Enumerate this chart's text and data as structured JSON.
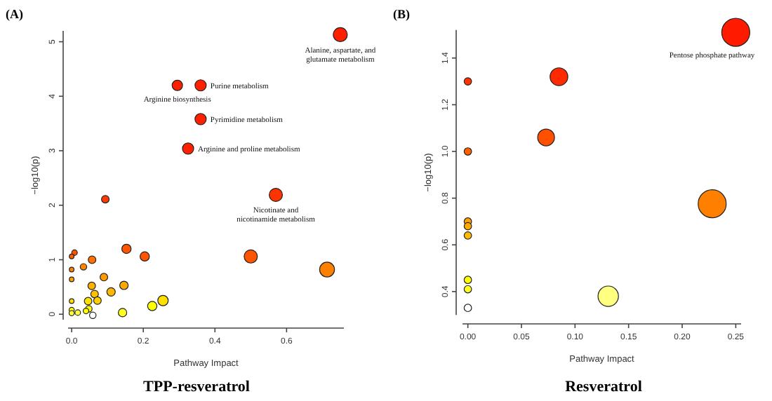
{
  "chart_data": [
    {
      "type": "bubble",
      "title": "TPP-resveratrol",
      "xlabel": "Pathway Impact",
      "ylabel": "−log10(p)",
      "xlim": [
        -0.01,
        0.76
      ],
      "ylim": [
        -0.1,
        5.2
      ],
      "xticks": [
        {
          "value": 0,
          "label": "0.0"
        },
        {
          "value": 0.2,
          "label": "0.2"
        },
        {
          "value": 0.4,
          "label": "0.4"
        },
        {
          "value": 0.6,
          "label": "0.6"
        }
      ],
      "yticks": [
        0,
        1,
        2,
        3,
        4,
        5
      ],
      "x": [
        0.75,
        0.36,
        0.295,
        0.36,
        0.325,
        0.57,
        0.094,
        0.153,
        0.204,
        0.5,
        0.713,
        0.008,
        0.0,
        0.057,
        0.033,
        0.0,
        0.0,
        0.09,
        0.056,
        0.146,
        0.064,
        0.11,
        0.072,
        0.046,
        0.0,
        0.255,
        0.225,
        0.142,
        0.048,
        0.04,
        0.059,
        0.017,
        0.0,
        0.0
      ],
      "values": [
        5.13,
        4.2,
        4.2,
        3.58,
        3.04,
        2.19,
        2.11,
        1.2,
        1.06,
        1.06,
        0.82,
        1.13,
        1.06,
        1.0,
        0.87,
        0.82,
        0.64,
        0.68,
        0.52,
        0.53,
        0.37,
        0.41,
        0.25,
        0.24,
        0.24,
        0.25,
        0.15,
        0.03,
        0.1,
        0.06,
        -0.02,
        0.03,
        0.08,
        0.02
      ],
      "sizes": [
        0.89,
        0.57,
        0.49,
        0.57,
        0.57,
        0.79,
        0.26,
        0.39,
        0.39,
        0.79,
        1,
        0.14,
        0.1,
        0.26,
        0.19,
        0.1,
        0.1,
        0.26,
        0.26,
        0.32,
        0.26,
        0.32,
        0.26,
        0.26,
        0.1,
        0.49,
        0.39,
        0.32,
        0.19,
        0.14,
        0.19,
        0.14,
        0.12,
        0.12
      ],
      "colors": [
        "#ff2000",
        "#ff2000",
        "#ff2000",
        "#ff2000",
        "#ff2000",
        "#ff3300",
        "#ff3a00",
        "#ff5500",
        "#ff5500",
        "#ff5500",
        "#ff8000",
        "#ff5500",
        "#ff6000",
        "#ff7000",
        "#ff8500",
        "#ff8500",
        "#ffa000",
        "#ff9a00",
        "#ffb000",
        "#ffa800",
        "#ffc000",
        "#ffb800",
        "#ffd000",
        "#ffe000",
        "#ffe000",
        "#ffe000",
        "#ffff00",
        "#ffff20",
        "#ffff00",
        "#ffff00",
        "#ffffff",
        "#ffff40",
        "#ffff00",
        "#ffff40"
      ],
      "annotations": [
        "(A)",
        {
          "text": "Alanine, aspartate, and glutamate metabolism",
          "x": 0.75,
          "y": 5.13
        },
        {
          "text": "Purine metabolism",
          "x": 0.36,
          "y": 4.2
        },
        {
          "text": "Arginine biosynthesis",
          "x": 0.295,
          "y": 4.2
        },
        {
          "text": "Pyrimidine metabolism",
          "x": 0.36,
          "y": 3.58
        },
        {
          "text": "Arginine and proline metabolism",
          "x": 0.325,
          "y": 3.04
        },
        {
          "text": "Nicotinate and nicotinamide metabolism",
          "x": 0.57,
          "y": 2.19
        }
      ]
    },
    {
      "type": "bubble",
      "title": "Resveratrol",
      "xlabel": "Pathway Impact",
      "ylabel": "−log10(p)",
      "xlim": [
        -0.005,
        0.255
      ],
      "ylim": [
        0.3,
        1.52
      ],
      "xticks": [
        {
          "value": 0,
          "label": "0.00"
        },
        {
          "value": 0.05,
          "label": "0.05"
        },
        {
          "value": 0.1,
          "label": "0.10"
        },
        {
          "value": 0.15,
          "label": "0.15"
        },
        {
          "value": 0.2,
          "label": "0.20"
        },
        {
          "value": 0.25,
          "label": "0.25"
        }
      ],
      "yticks": [
        {
          "value": 0.4,
          "label": "0.4"
        },
        {
          "value": 0.6,
          "label": "0.6"
        },
        {
          "value": 0.8,
          "label": "0.8"
        },
        {
          "value": 1.0,
          "label": "1.0"
        },
        {
          "value": 1.2,
          "label": "1.2"
        },
        {
          "value": 1.4,
          "label": "1.4"
        }
      ],
      "x": [
        0.25,
        0.085,
        0.0,
        0.073,
        0.0,
        0.228,
        0.0,
        0.0,
        0.0,
        0.0,
        0.0,
        0.0,
        0.131
      ],
      "values": [
        1.51,
        1.32,
        1.3,
        1.06,
        1.0,
        0.776,
        0.7,
        0.68,
        0.64,
        0.45,
        0.41,
        0.33,
        0.38
      ],
      "sizes": [
        1,
        0.4,
        0.07,
        0.36,
        0.07,
        1,
        0.07,
        0.07,
        0.07,
        0.07,
        0.07,
        0.07,
        0.53
      ],
      "colors": [
        "#ff1a00",
        "#ff2a00",
        "#ff3300",
        "#ff5000",
        "#ff6000",
        "#ff8000",
        "#ffa000",
        "#ffa800",
        "#ffb800",
        "#ffff00",
        "#ffff20",
        "#ffffff",
        "#ffff80"
      ],
      "annotations": [
        "(B)",
        {
          "text": "Pentose phosphate pathway",
          "x": 0.25,
          "y": 1.51
        }
      ]
    }
  ]
}
